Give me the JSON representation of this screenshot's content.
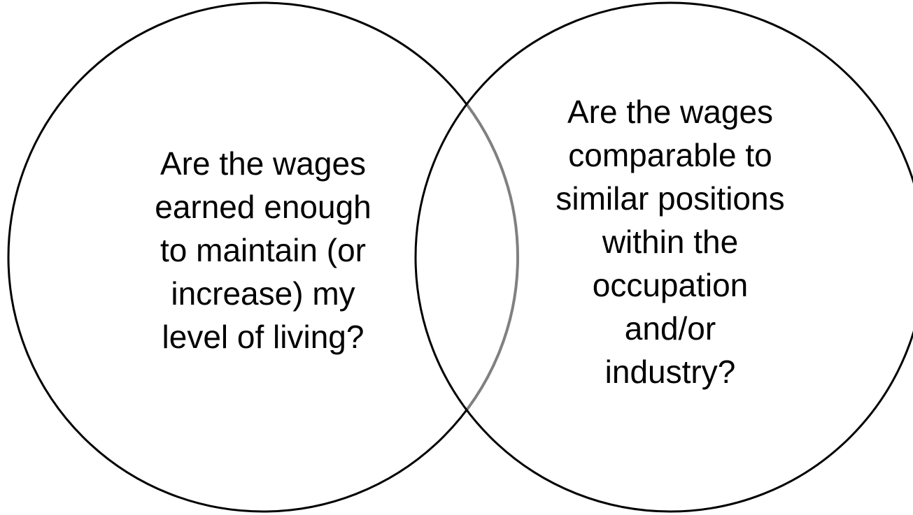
{
  "left_circle": {
    "lines": [
      "Are the wages",
      "earned enough",
      "to maintain (or",
      "increase) my",
      "level of living?"
    ]
  },
  "right_circle": {
    "lines": [
      "Are the wages",
      "comparable to",
      "similar positions",
      "within the",
      "occupation",
      "and/or",
      "industry?"
    ]
  }
}
